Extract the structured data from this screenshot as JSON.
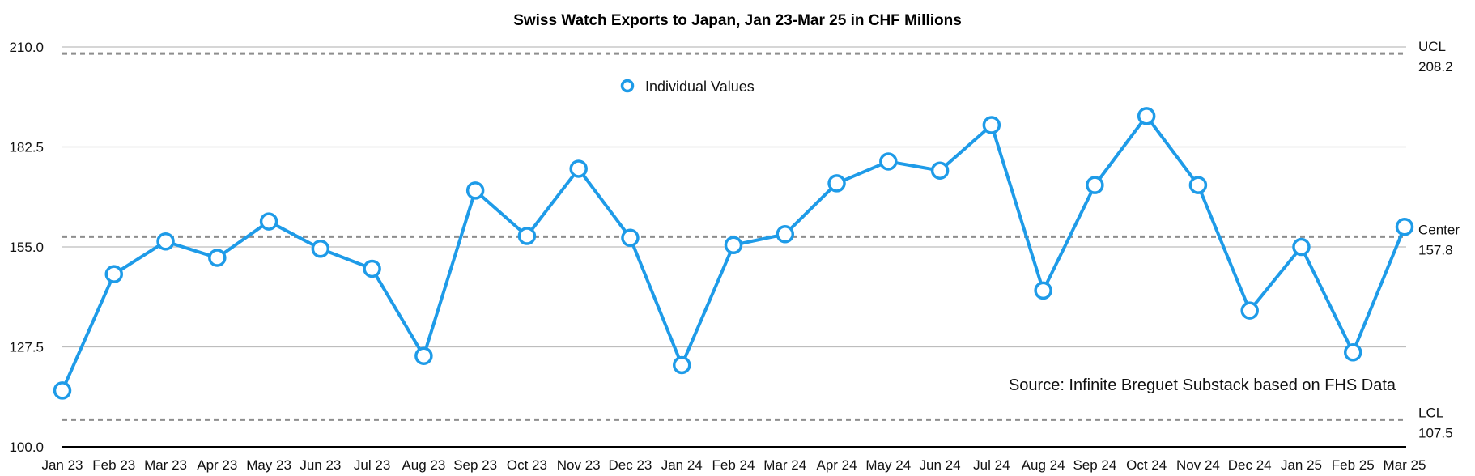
{
  "chart_data": {
    "type": "line",
    "title": "Swiss Watch Exports to Japan, Jan 23-Mar 25 in CHF Millions",
    "xlabel": "",
    "ylabel": "",
    "ylim": [
      100.0,
      210.0
    ],
    "yticks": [
      "100.0",
      "127.5",
      "155.0",
      "182.5",
      "210.0"
    ],
    "grid": true,
    "legend": "top-center",
    "categories": [
      "Jan 23",
      "Feb 23",
      "Mar 23",
      "Apr 23",
      "May 23",
      "Jun 23",
      "Jul 23",
      "Aug 23",
      "Sep 23",
      "Oct 23",
      "Nov 23",
      "Dec 23",
      "Jan 24",
      "Feb 24",
      "Mar 24",
      "Apr 24",
      "May 24",
      "Jun 24",
      "Jul 24",
      "Aug 24",
      "Sep 24",
      "Oct 24",
      "Nov 24",
      "Dec 24",
      "Jan 25",
      "Feb 25",
      "Mar 25"
    ],
    "series": [
      {
        "name": "Individual Values",
        "color": "#1e9be8",
        "values": [
          115.5,
          147.5,
          156.5,
          152.0,
          162.0,
          154.5,
          149.0,
          125.0,
          170.5,
          158.0,
          176.5,
          157.5,
          122.5,
          155.5,
          158.5,
          172.5,
          178.5,
          176.0,
          188.5,
          143.0,
          172.0,
          191.0,
          172.0,
          137.5,
          155.0,
          126.0,
          160.5
        ]
      }
    ],
    "control_lines": [
      {
        "label": "UCL",
        "value_label": "208.2",
        "value": 208.2
      },
      {
        "label": "Center",
        "value_label": "157.8",
        "value": 157.8
      },
      {
        "label": "LCL",
        "value_label": "107.5",
        "value": 107.5
      }
    ],
    "annotation": "Source: Infinite Breguet Substack based on FHS Data"
  },
  "colors": {
    "series": "#1e9be8",
    "grid": "#bdbdbd",
    "control_line": "#8e8e8e",
    "axis": "#000000"
  }
}
